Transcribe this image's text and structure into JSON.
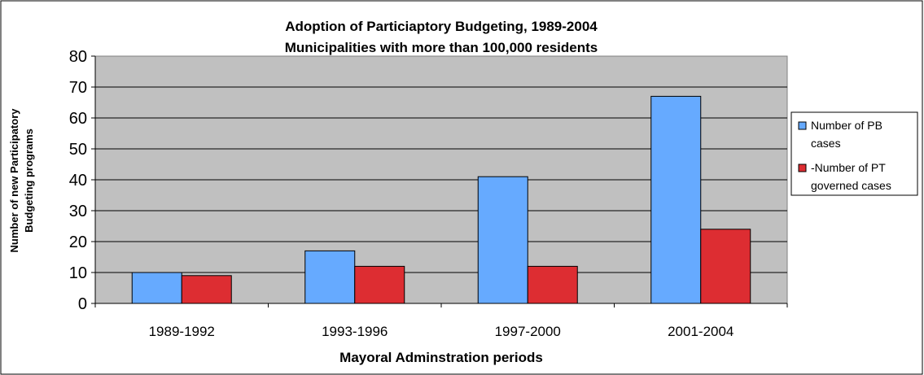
{
  "chart_data": {
    "type": "bar",
    "title": "Adoption of Particiaptory Budgeting, 1989-2004",
    "subtitle": "Municipalities with more than 100,000 residents",
    "xlabel": "Mayoral Adminstration periods",
    "ylabel_lines": [
      "Number of new Participatory",
      "Budgeting programs"
    ],
    "categories": [
      "1989-1992",
      "1993-1996",
      "1997-2000",
      "2001-2004"
    ],
    "ylim": [
      0,
      80
    ],
    "yticks": [
      0,
      10,
      20,
      30,
      40,
      50,
      60,
      70,
      80
    ],
    "grid": true,
    "legend_position": "right",
    "series": [
      {
        "name_lines": [
          "Number of PB",
          "cases"
        ],
        "color": "#66aaff",
        "values": [
          10,
          17,
          41,
          67
        ]
      },
      {
        "name_lines": [
          "-Number of PT",
          "governed cases"
        ],
        "color": "#dd2d32",
        "values": [
          9,
          12,
          12,
          24
        ]
      }
    ],
    "plot_background": "#c0c0c0"
  }
}
